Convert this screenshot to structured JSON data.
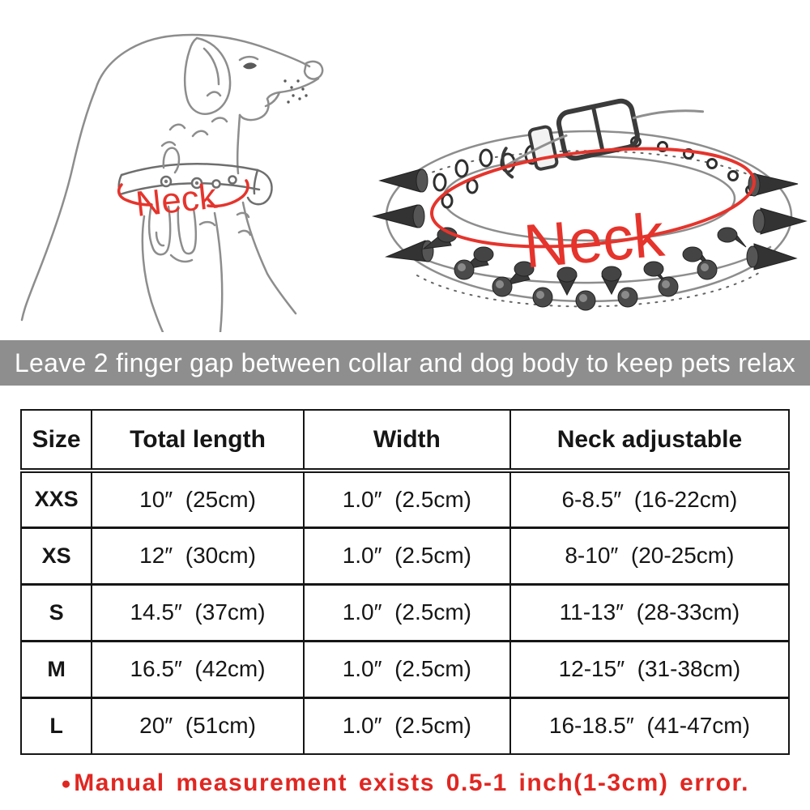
{
  "dog_diagram": {
    "label": "Neck"
  },
  "collar_diagram": {
    "label": "Neck"
  },
  "banner": {
    "text": "Leave 2 finger gap between collar and dog body to keep pets relax"
  },
  "size_table": {
    "columns": [
      "Size",
      "Total length",
      "Width",
      "Neck adjustable"
    ],
    "rows": [
      [
        "XXS",
        "10″  (25cm)",
        "1.0″  (2.5cm)",
        "6-8.5″  (16-22cm)"
      ],
      [
        "XS",
        "12″  (30cm)",
        "1.0″  (2.5cm)",
        "8-10″  (20-25cm)"
      ],
      [
        "S",
        "14.5″  (37cm)",
        "1.0″  (2.5cm)",
        "11-13″  (28-33cm)"
      ],
      [
        "M",
        "16.5″  (42cm)",
        "1.0″  (2.5cm)",
        "12-15″  (31-38cm)"
      ],
      [
        "L",
        "20″  (51cm)",
        "1.0″  (2.5cm)",
        "16-18.5″  (41-47cm)"
      ]
    ]
  },
  "footnote": {
    "bullet": "●",
    "text": "Manual measurement exists 0.5-1 inch(1-3cm) error."
  },
  "colors": {
    "accent_red": "#e02722",
    "label_red": "#e5342c",
    "banner_gray": "#8e8e8e",
    "banner_text": "#ffffff",
    "ink": "#161616",
    "sketch_gray": "#8d8d8d",
    "spike_dark": "#333333"
  }
}
